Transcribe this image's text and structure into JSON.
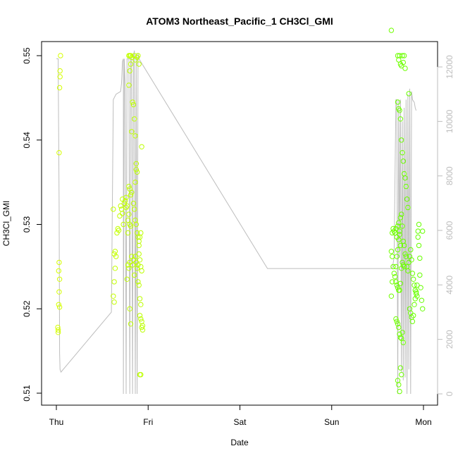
{
  "chart_data": {
    "type": "scatter",
    "title": "ATOM3 Northeast_Pacific_1 CH3Cl_GMI",
    "xlabel": "Date",
    "ylabel": "CH3Cl_GMI",
    "x_ticks": [
      "Thu",
      "Fri",
      "Sat",
      "Sun",
      "Mon"
    ],
    "xlim_days": [
      0,
      4
    ],
    "ylim": [
      0.51,
      0.55
    ],
    "y_ticks": [
      0.51,
      0.52,
      0.53,
      0.54,
      0.55
    ],
    "y_tick_labels": [
      "0.51",
      "0.52",
      "0.53",
      "0.54",
      "0.55"
    ],
    "y2_lim": [
      0,
      12000
    ],
    "y2_ticks": [
      0,
      2000,
      4000,
      6000,
      8000,
      10000,
      12000
    ],
    "y2_tick_labels": [
      "0",
      "2000",
      "4000",
      "6000",
      "8000",
      "10000",
      "12000"
    ],
    "grid": false,
    "colors": {
      "scatter_start": "#d6ff00",
      "scatter_end": "#66ff00",
      "altitude_line": "#bdbdbd",
      "axis": "#000000",
      "right_axis": "#bdbdbd"
    },
    "series": [
      {
        "values": [
          [
            0.02,
            0.5175
          ],
          [
            0.02,
            0.5172
          ],
          [
            0.015,
            0.5178
          ],
          [
            0.03,
            0.5255
          ],
          [
            0.025,
            0.5245
          ],
          [
            0.035,
            0.5235
          ],
          [
            0.03,
            0.522
          ],
          [
            0.025,
            0.5205
          ],
          [
            0.035,
            0.5202
          ],
          [
            0.03,
            0.5385
          ],
          [
            0.035,
            0.5462
          ],
          [
            0.04,
            0.5475
          ],
          [
            0.04,
            0.5482
          ],
          [
            0.045,
            0.55
          ],
          [
            0.62,
            0.5318
          ],
          [
            0.63,
            0.5232
          ],
          [
            0.62,
            0.5215
          ],
          [
            0.63,
            0.5208
          ],
          [
            0.64,
            0.5268
          ],
          [
            0.63,
            0.5265
          ],
          [
            0.65,
            0.5262
          ],
          [
            0.64,
            0.5248
          ],
          [
            0.66,
            0.529
          ],
          [
            0.67,
            0.5295
          ],
          [
            0.68,
            0.5293
          ],
          [
            0.69,
            0.531
          ],
          [
            0.7,
            0.5322
          ],
          [
            0.71,
            0.5318
          ],
          [
            0.72,
            0.533
          ],
          [
            0.72,
            0.5313
          ],
          [
            0.73,
            0.53
          ],
          [
            0.74,
            0.5325
          ],
          [
            0.75,
            0.5328
          ],
          [
            0.76,
            0.532
          ],
          [
            0.76,
            0.5332
          ],
          [
            0.77,
            0.5322
          ],
          [
            0.78,
            0.5305
          ],
          [
            0.78,
            0.529
          ],
          [
            0.79,
            0.5312
          ],
          [
            0.8,
            0.53
          ],
          [
            0.81,
            0.5298
          ],
          [
            0.79,
            0.5345
          ],
          [
            0.8,
            0.5342
          ],
          [
            0.81,
            0.5335
          ],
          [
            0.82,
            0.5338
          ],
          [
            0.78,
            0.5252
          ],
          [
            0.79,
            0.5248
          ],
          [
            0.8,
            0.5255
          ],
          [
            0.77,
            0.5235
          ],
          [
            0.82,
            0.5262
          ],
          [
            0.83,
            0.5252
          ],
          [
            0.84,
            0.5258
          ],
          [
            0.85,
            0.524
          ],
          [
            0.8,
            0.52
          ],
          [
            0.81,
            0.5182
          ],
          [
            0.79,
            0.5465
          ],
          [
            0.8,
            0.5482
          ],
          [
            0.81,
            0.549
          ],
          [
            0.82,
            0.541
          ],
          [
            0.83,
            0.5445
          ],
          [
            0.84,
            0.5442
          ],
          [
            0.85,
            0.5425
          ],
          [
            0.86,
            0.5405
          ],
          [
            0.87,
            0.5365
          ],
          [
            0.88,
            0.5362
          ],
          [
            0.86,
            0.535
          ],
          [
            0.87,
            0.5372
          ],
          [
            0.79,
            0.55
          ],
          [
            0.8,
            0.55
          ],
          [
            0.81,
            0.55
          ],
          [
            0.82,
            0.5498
          ],
          [
            0.85,
            0.55
          ],
          [
            0.86,
            0.5495
          ],
          [
            0.88,
            0.5498
          ],
          [
            0.89,
            0.55
          ],
          [
            0.9,
            0.549
          ],
          [
            0.84,
            0.5325
          ],
          [
            0.85,
            0.5318
          ],
          [
            0.86,
            0.5305
          ],
          [
            0.87,
            0.53
          ],
          [
            0.88,
            0.529
          ],
          [
            0.89,
            0.5285
          ],
          [
            0.9,
            0.528
          ],
          [
            0.9,
            0.5275
          ],
          [
            0.91,
            0.5285
          ],
          [
            0.92,
            0.529
          ],
          [
            0.86,
            0.5262
          ],
          [
            0.87,
            0.5255
          ],
          [
            0.88,
            0.5248
          ],
          [
            0.89,
            0.5252
          ],
          [
            0.9,
            0.5265
          ],
          [
            0.91,
            0.5258
          ],
          [
            0.92,
            0.525
          ],
          [
            0.93,
            0.5245
          ],
          [
            0.89,
            0.5232
          ],
          [
            0.9,
            0.5228
          ],
          [
            0.91,
            0.5212
          ],
          [
            0.92,
            0.5205
          ],
          [
            0.91,
            0.5192
          ],
          [
            0.92,
            0.5188
          ],
          [
            0.93,
            0.5185
          ],
          [
            0.94,
            0.518
          ],
          [
            0.93,
            0.5178
          ],
          [
            0.94,
            0.5175
          ],
          [
            0.92,
            0.5122
          ],
          [
            0.91,
            0.5122
          ],
          [
            0.93,
            0.5392
          ],
          [
            3.65,
            0.553
          ],
          [
            3.66,
            0.529
          ],
          [
            3.67,
            0.5295
          ],
          [
            3.68,
            0.5292
          ],
          [
            3.69,
            0.529
          ],
          [
            3.7,
            0.5295
          ],
          [
            3.71,
            0.5285
          ],
          [
            3.72,
            0.5298
          ],
          [
            3.73,
            0.5302
          ],
          [
            3.74,
            0.5288
          ],
          [
            3.75,
            0.5275
          ],
          [
            3.65,
            0.5268
          ],
          [
            3.66,
            0.5262
          ],
          [
            3.67,
            0.525
          ],
          [
            3.68,
            0.5242
          ],
          [
            3.69,
            0.5238
          ],
          [
            3.7,
            0.5232
          ],
          [
            3.71,
            0.5228
          ],
          [
            3.72,
            0.5225
          ],
          [
            3.73,
            0.5222
          ],
          [
            3.74,
            0.5222
          ],
          [
            3.75,
            0.523
          ],
          [
            3.76,
            0.5248
          ],
          [
            3.77,
            0.5255
          ],
          [
            3.78,
            0.5252
          ],
          [
            3.79,
            0.525
          ],
          [
            3.65,
            0.5215
          ],
          [
            3.66,
            0.5232
          ],
          [
            3.7,
            0.525
          ],
          [
            3.71,
            0.5262
          ],
          [
            3.72,
            0.527
          ],
          [
            3.73,
            0.5282
          ],
          [
            3.74,
            0.5292
          ],
          [
            3.75,
            0.5308
          ],
          [
            3.76,
            0.5312
          ],
          [
            3.77,
            0.5298
          ],
          [
            3.78,
            0.528
          ],
          [
            3.79,
            0.5275
          ],
          [
            3.8,
            0.5265
          ],
          [
            3.81,
            0.5262
          ],
          [
            3.82,
            0.525
          ],
          [
            3.83,
            0.5245
          ],
          [
            3.84,
            0.5255
          ],
          [
            3.85,
            0.5262
          ],
          [
            3.86,
            0.527
          ],
          [
            3.87,
            0.5258
          ],
          [
            3.88,
            0.5242
          ],
          [
            3.89,
            0.5235
          ],
          [
            3.9,
            0.5228
          ],
          [
            3.91,
            0.5222
          ],
          [
            3.92,
            0.5218
          ],
          [
            3.93,
            0.5215
          ],
          [
            3.7,
            0.5188
          ],
          [
            3.71,
            0.5185
          ],
          [
            3.72,
            0.5182
          ],
          [
            3.73,
            0.5178
          ],
          [
            3.74,
            0.517
          ],
          [
            3.75,
            0.5166
          ],
          [
            3.76,
            0.5165
          ],
          [
            3.77,
            0.5172
          ],
          [
            3.78,
            0.516
          ],
          [
            3.85,
            0.52
          ],
          [
            3.86,
            0.5195
          ],
          [
            3.87,
            0.519
          ],
          [
            3.88,
            0.5185
          ],
          [
            3.89,
            0.5192
          ],
          [
            3.9,
            0.5205
          ],
          [
            3.91,
            0.5212
          ],
          [
            3.92,
            0.522
          ],
          [
            3.93,
            0.5228
          ],
          [
            3.72,
            0.5115
          ],
          [
            3.73,
            0.511
          ],
          [
            3.74,
            0.5102
          ],
          [
            3.75,
            0.513
          ],
          [
            3.76,
            0.5122
          ],
          [
            3.72,
            0.5445
          ],
          [
            3.73,
            0.5437
          ],
          [
            3.74,
            0.5435
          ],
          [
            3.75,
            0.5425
          ],
          [
            3.76,
            0.54
          ],
          [
            3.77,
            0.5385
          ],
          [
            3.78,
            0.5375
          ],
          [
            3.79,
            0.536
          ],
          [
            3.8,
            0.5355
          ],
          [
            3.81,
            0.5345
          ],
          [
            3.82,
            0.533
          ],
          [
            3.83,
            0.532
          ],
          [
            3.84,
            0.5455
          ],
          [
            3.72,
            0.55
          ],
          [
            3.73,
            0.5495
          ],
          [
            3.74,
            0.55
          ],
          [
            3.75,
            0.549
          ],
          [
            3.76,
            0.5488
          ],
          [
            3.77,
            0.55
          ],
          [
            3.78,
            0.5492
          ],
          [
            3.79,
            0.55
          ],
          [
            3.8,
            0.5485
          ],
          [
            3.94,
            0.5292
          ],
          [
            3.94,
            0.5285
          ],
          [
            3.95,
            0.53
          ],
          [
            3.95,
            0.5275
          ],
          [
            3.96,
            0.526
          ],
          [
            3.96,
            0.524
          ],
          [
            3.97,
            0.5225
          ],
          [
            3.98,
            0.521
          ],
          [
            3.99,
            0.52
          ],
          [
            3.99,
            0.5292
          ]
        ]
      },
      {
        "axis": "right",
        "values": [
          [
            0.0,
            12300
          ],
          [
            0.02,
            12300
          ],
          [
            0.02,
            12000
          ],
          [
            0.03,
            7000
          ],
          [
            0.035,
            1500
          ],
          [
            0.04,
            900
          ],
          [
            0.05,
            800
          ],
          [
            0.6,
            3000
          ],
          [
            0.62,
            10800
          ],
          [
            0.65,
            11000
          ],
          [
            0.7,
            11100
          ],
          [
            0.71,
            11400
          ],
          [
            0.72,
            12200
          ],
          [
            0.73,
            12300
          ],
          [
            0.73,
            0
          ],
          [
            0.74,
            12300
          ],
          [
            0.75,
            11300
          ],
          [
            0.76,
            0
          ],
          [
            0.77,
            12300
          ],
          [
            0.79,
            12300
          ],
          [
            0.8,
            0
          ],
          [
            0.81,
            12300
          ],
          [
            0.82,
            12300
          ],
          [
            0.83,
            0
          ],
          [
            0.84,
            12400
          ],
          [
            0.85,
            12600
          ],
          [
            0.86,
            0
          ],
          [
            0.87,
            12500
          ],
          [
            0.88,
            0
          ],
          [
            0.89,
            12500
          ],
          [
            0.9,
            12300
          ],
          [
            2.3,
            4600
          ],
          [
            3.66,
            4600
          ],
          [
            3.68,
            5000
          ],
          [
            3.7,
            10800
          ],
          [
            3.71,
            10800
          ],
          [
            3.72,
            0
          ],
          [
            3.73,
            10800
          ],
          [
            3.74,
            5000
          ],
          [
            3.75,
            10800
          ],
          [
            3.76,
            800
          ],
          [
            3.77,
            10000
          ],
          [
            3.78,
            500
          ],
          [
            3.79,
            10500
          ],
          [
            3.8,
            600
          ],
          [
            3.81,
            10800
          ],
          [
            3.82,
            0
          ],
          [
            3.83,
            11000
          ],
          [
            3.84,
            900
          ],
          [
            3.85,
            11200
          ],
          [
            3.86,
            0
          ],
          [
            3.87,
            11100
          ],
          [
            3.88,
            10800
          ],
          [
            3.9,
            10700
          ],
          [
            3.91,
            10500
          ],
          [
            3.92,
            10400
          ]
        ]
      }
    ]
  }
}
